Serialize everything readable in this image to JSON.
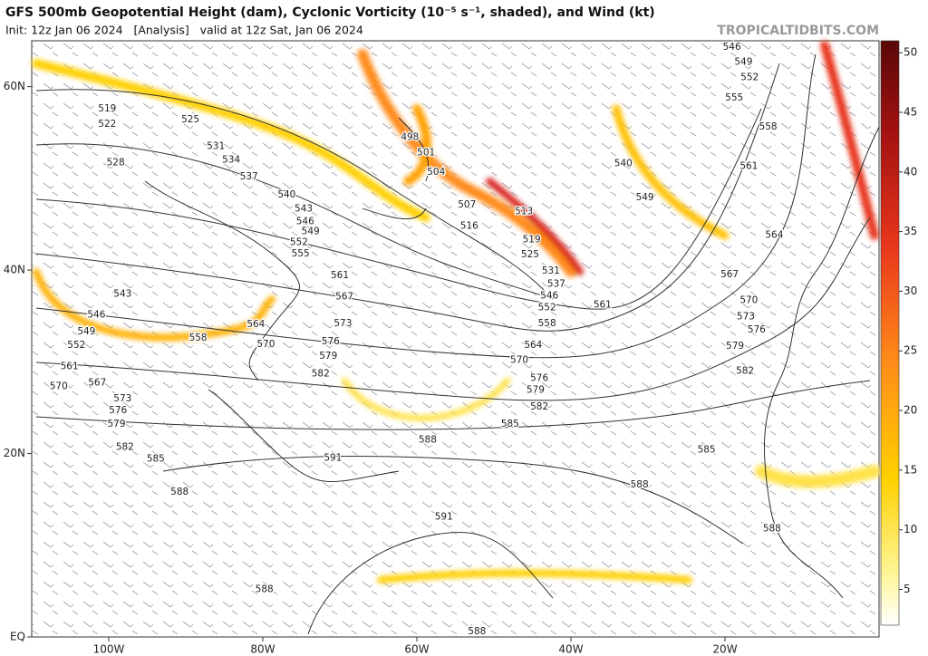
{
  "chart_data": {
    "type": "map",
    "title": "GFS 500mb Geopotential Height (dam), Cyclonic Vorticity (10⁻⁵ s⁻¹, shaded), and Wind (kt)",
    "subtitle": "Init: 12z Jan 06 2024   [Analysis]   valid at 12z Sat, Jan 06 2024",
    "credit": "TROPICALTIDBITS.COM",
    "xlim": [
      -110,
      0
    ],
    "ylim": [
      0,
      65
    ],
    "xticks": [
      {
        "value": -100,
        "label": "100W"
      },
      {
        "value": -80,
        "label": "80W"
      },
      {
        "value": -60,
        "label": "60W"
      },
      {
        "value": -40,
        "label": "40W"
      },
      {
        "value": -20,
        "label": "20W"
      }
    ],
    "yticks": [
      {
        "value": 60,
        "label": "60N"
      },
      {
        "value": 40,
        "label": "40N"
      },
      {
        "value": 20,
        "label": "20N"
      },
      {
        "value": 0,
        "label": "EQ"
      }
    ],
    "colorbar": {
      "lim": [
        2,
        51
      ],
      "ticks": [
        5,
        10,
        15,
        20,
        25,
        30,
        35,
        40,
        45,
        50
      ]
    },
    "contour_labels": [
      {
        "value": 519,
        "lon": -100.2,
        "lat": 57.6
      },
      {
        "value": 522,
        "lon": -100.2,
        "lat": 55.9
      },
      {
        "value": 525,
        "lon": -89.4,
        "lat": 56.4
      },
      {
        "value": 528,
        "lon": -99.1,
        "lat": 51.7
      },
      {
        "value": 531,
        "lon": -86.1,
        "lat": 53.5
      },
      {
        "value": 534,
        "lon": -84.1,
        "lat": 52.0
      },
      {
        "value": 537,
        "lon": -81.8,
        "lat": 50.2
      },
      {
        "value": 540,
        "lon": -76.9,
        "lat": 48.2
      },
      {
        "value": 543,
        "lon": -74.7,
        "lat": 46.7
      },
      {
        "value": 546,
        "lon": -74.5,
        "lat": 45.3
      },
      {
        "value": 549,
        "lon": -73.8,
        "lat": 44.2
      },
      {
        "value": 552,
        "lon": -75.3,
        "lat": 43.0
      },
      {
        "value": 555,
        "lon": -75.1,
        "lat": 41.8
      },
      {
        "value": 561,
        "lon": -70.0,
        "lat": 39.4
      },
      {
        "value": 567,
        "lon": -69.4,
        "lat": 37.1
      },
      {
        "value": 573,
        "lon": -69.6,
        "lat": 34.2
      },
      {
        "value": 576,
        "lon": -71.2,
        "lat": 32.2
      },
      {
        "value": 579,
        "lon": -71.5,
        "lat": 30.6
      },
      {
        "value": 582,
        "lon": -72.5,
        "lat": 28.7
      },
      {
        "value": 543,
        "lon": -98.2,
        "lat": 37.4
      },
      {
        "value": 546,
        "lon": -101.6,
        "lat": 35.1
      },
      {
        "value": 549,
        "lon": -102.9,
        "lat": 33.3
      },
      {
        "value": 552,
        "lon": -104.2,
        "lat": 31.8
      },
      {
        "value": 561,
        "lon": -105.1,
        "lat": 29.5
      },
      {
        "value": 567,
        "lon": -101.5,
        "lat": 27.7
      },
      {
        "value": 570,
        "lon": -106.5,
        "lat": 27.3
      },
      {
        "value": 573,
        "lon": -98.2,
        "lat": 26.0
      },
      {
        "value": 576,
        "lon": -98.8,
        "lat": 24.7
      },
      {
        "value": 579,
        "lon": -99.0,
        "lat": 23.2
      },
      {
        "value": 582,
        "lon": -97.9,
        "lat": 20.7
      },
      {
        "value": 585,
        "lon": -93.9,
        "lat": 19.4
      },
      {
        "value": 588,
        "lon": -90.8,
        "lat": 15.8
      },
      {
        "value": 558,
        "lon": -88.4,
        "lat": 32.6
      },
      {
        "value": 564,
        "lon": -80.9,
        "lat": 34.1
      },
      {
        "value": 570,
        "lon": -79.6,
        "lat": 31.9
      },
      {
        "value": 591,
        "lon": -70.9,
        "lat": 19.5
      },
      {
        "value": 591,
        "lon": -56.5,
        "lat": 13.1
      },
      {
        "value": 588,
        "lon": -58.6,
        "lat": 21.5
      },
      {
        "value": 585,
        "lon": -47.9,
        "lat": 23.2
      },
      {
        "value": 588,
        "lon": -79.8,
        "lat": 5.2
      },
      {
        "value": 588,
        "lon": -52.2,
        "lat": 0.6
      },
      {
        "value": 498,
        "lon": -60.9,
        "lat": 54.5
      },
      {
        "value": 501,
        "lon": -58.8,
        "lat": 52.8
      },
      {
        "value": 504,
        "lon": -57.5,
        "lat": 50.7
      },
      {
        "value": 507,
        "lon": -53.5,
        "lat": 47.1
      },
      {
        "value": 516,
        "lon": -53.2,
        "lat": 44.8
      },
      {
        "value": 513,
        "lon": -46.1,
        "lat": 46.4
      },
      {
        "value": 519,
        "lon": -45.1,
        "lat": 43.3
      },
      {
        "value": 525,
        "lon": -45.3,
        "lat": 41.7
      },
      {
        "value": 531,
        "lon": -42.6,
        "lat": 39.9
      },
      {
        "value": 537,
        "lon": -41.9,
        "lat": 38.5
      },
      {
        "value": 546,
        "lon": -42.8,
        "lat": 37.2
      },
      {
        "value": 552,
        "lon": -43.1,
        "lat": 35.9
      },
      {
        "value": 558,
        "lon": -43.1,
        "lat": 34.2
      },
      {
        "value": 561,
        "lon": -35.9,
        "lat": 36.2
      },
      {
        "value": 564,
        "lon": -44.9,
        "lat": 31.8
      },
      {
        "value": 570,
        "lon": -46.7,
        "lat": 30.2
      },
      {
        "value": 576,
        "lon": -44.1,
        "lat": 28.2
      },
      {
        "value": 579,
        "lon": -44.6,
        "lat": 26.9
      },
      {
        "value": 582,
        "lon": -44.1,
        "lat": 25.1
      },
      {
        "value": 540,
        "lon": -33.2,
        "lat": 51.6
      },
      {
        "value": 549,
        "lon": -30.4,
        "lat": 47.9
      },
      {
        "value": 546,
        "lon": -19.1,
        "lat": 64.3
      },
      {
        "value": 549,
        "lon": -17.6,
        "lat": 62.7
      },
      {
        "value": 552,
        "lon": -16.8,
        "lat": 61.0
      },
      {
        "value": 555,
        "lon": -18.8,
        "lat": 58.8
      },
      {
        "value": 558,
        "lon": -14.4,
        "lat": 55.6
      },
      {
        "value": 561,
        "lon": -16.9,
        "lat": 51.3
      },
      {
        "value": 564,
        "lon": -13.6,
        "lat": 43.8
      },
      {
        "value": 567,
        "lon": -19.4,
        "lat": 39.5
      },
      {
        "value": 570,
        "lon": -16.9,
        "lat": 36.7
      },
      {
        "value": 573,
        "lon": -17.3,
        "lat": 34.9
      },
      {
        "value": 576,
        "lon": -15.9,
        "lat": 33.5
      },
      {
        "value": 579,
        "lon": -18.7,
        "lat": 31.7
      },
      {
        "value": 582,
        "lon": -17.4,
        "lat": 29.0
      },
      {
        "value": 585,
        "lon": -22.4,
        "lat": 20.4
      },
      {
        "value": 588,
        "lon": -31.1,
        "lat": 16.6
      },
      {
        "value": 588,
        "lon": -13.9,
        "lat": 11.8
      }
    ]
  }
}
